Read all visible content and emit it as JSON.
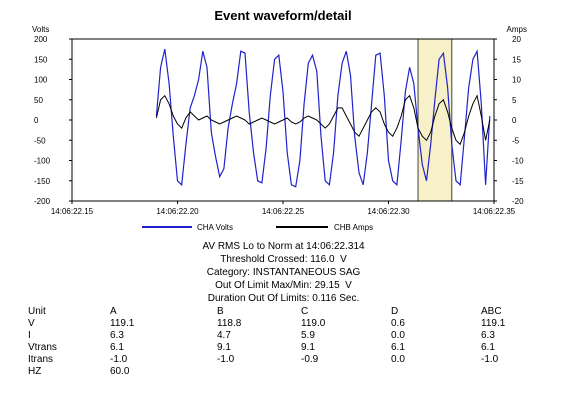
{
  "chart_data": {
    "type": "line",
    "title": "Event waveform/detail",
    "left_axis_label": "Volts",
    "right_axis_label": "Amps",
    "y_left_ticks": [
      "200",
      "150",
      "100",
      "50",
      "0",
      "-50",
      "-100",
      "-150",
      "-200"
    ],
    "y_right_ticks": [
      "20",
      "15",
      "10",
      "5",
      "0",
      "-5",
      "-10",
      "-15",
      "-20"
    ],
    "y_left_lim": [
      -200,
      200
    ],
    "y_right_lim": [
      -20,
      20
    ],
    "x_ticks": [
      "14:06:22.15",
      "14:06:22.20",
      "14:06:22.25",
      "14:06:22.30",
      "14:06:22.35"
    ],
    "x_lim_seconds": [
      22.15,
      22.35
    ],
    "highlight_range_seconds": [
      22.314,
      22.33
    ],
    "highlight_color": "#f7f0c8",
    "series": [
      {
        "name": "CHA Volts",
        "color": "#1f23cc",
        "axis": "left",
        "x": [
          22.19,
          22.192,
          22.194,
          22.196,
          22.198,
          22.2,
          22.202,
          22.204,
          22.206,
          22.208,
          22.21,
          22.212,
          22.214,
          22.216,
          22.218,
          22.22,
          22.222,
          22.224,
          22.226,
          22.228,
          22.23,
          22.232,
          22.234,
          22.236,
          22.238,
          22.24,
          22.242,
          22.244,
          22.246,
          22.248,
          22.25,
          22.252,
          22.254,
          22.256,
          22.258,
          22.26,
          22.262,
          22.264,
          22.266,
          22.268,
          22.27,
          22.272,
          22.274,
          22.276,
          22.278,
          22.28,
          22.282,
          22.284,
          22.286,
          22.288,
          22.29,
          22.292,
          22.294,
          22.296,
          22.298,
          22.3,
          22.302,
          22.304,
          22.306,
          22.308,
          22.31,
          22.312,
          22.314,
          22.316,
          22.318,
          22.32,
          22.322,
          22.324,
          22.326,
          22.328,
          22.33,
          22.332,
          22.334,
          22.336,
          22.338,
          22.34,
          22.342,
          22.344,
          22.346,
          22.348
        ],
        "values": [
          10,
          130,
          175,
          90,
          -40,
          -150,
          -160,
          -60,
          30,
          60,
          100,
          170,
          130,
          -30,
          -90,
          -140,
          -120,
          -20,
          40,
          90,
          170,
          165,
          20,
          -80,
          -150,
          -155,
          -70,
          60,
          150,
          160,
          70,
          -80,
          -160,
          -165,
          -100,
          40,
          140,
          160,
          120,
          -40,
          -150,
          -160,
          -80,
          60,
          140,
          170,
          110,
          -40,
          -130,
          -160,
          -80,
          40,
          160,
          165,
          60,
          -100,
          -150,
          -160,
          -50,
          70,
          130,
          90,
          -20,
          -110,
          -150,
          -60,
          50,
          150,
          165,
          80,
          -60,
          -150,
          -160,
          -40,
          80,
          150,
          170,
          40,
          -160,
          10
        ]
      },
      {
        "name": "CHB Amps",
        "color": "#000000",
        "axis": "right",
        "x": [
          22.19,
          22.192,
          22.194,
          22.196,
          22.198,
          22.2,
          22.202,
          22.204,
          22.206,
          22.208,
          22.21,
          22.212,
          22.214,
          22.216,
          22.218,
          22.22,
          22.222,
          22.224,
          22.226,
          22.228,
          22.23,
          22.232,
          22.234,
          22.236,
          22.238,
          22.24,
          22.242,
          22.244,
          22.246,
          22.248,
          22.25,
          22.252,
          22.254,
          22.256,
          22.258,
          22.26,
          22.262,
          22.264,
          22.266,
          22.268,
          22.27,
          22.272,
          22.274,
          22.276,
          22.278,
          22.28,
          22.282,
          22.284,
          22.286,
          22.288,
          22.29,
          22.292,
          22.294,
          22.296,
          22.298,
          22.3,
          22.302,
          22.304,
          22.306,
          22.308,
          22.31,
          22.312,
          22.314,
          22.316,
          22.318,
          22.32,
          22.322,
          22.324,
          22.326,
          22.328,
          22.33,
          22.332,
          22.334,
          22.336,
          22.338,
          22.34,
          22.342,
          22.344,
          22.346,
          22.348
        ],
        "values": [
          0.5,
          5,
          6,
          4,
          1,
          -1,
          -2,
          0.5,
          2,
          1,
          0,
          0.5,
          1,
          0,
          -0.5,
          -1,
          -0.5,
          0,
          0.5,
          1,
          0.5,
          0,
          -1,
          -0.5,
          0,
          0.5,
          0,
          -0.5,
          -1,
          -0.5,
          0,
          0.5,
          -0.5,
          -1,
          -0.5,
          0.5,
          1,
          0.5,
          0,
          -1,
          -2,
          -1,
          1,
          3,
          3,
          1,
          -1,
          -3,
          -4,
          -2,
          0,
          2,
          3,
          2,
          -1,
          -3,
          -4,
          -2,
          1,
          5,
          6,
          3,
          -2,
          -4,
          -5,
          -3,
          1,
          4,
          5,
          2,
          -2,
          -5,
          -6,
          -3,
          1,
          4,
          6,
          1,
          -5,
          0
        ]
      }
    ]
  },
  "summary": {
    "line1": "AV RMS Lo to Norm at 14:06:22.314",
    "line2": "Threshold Crossed: 116.0  V",
    "line3": "Category: INSTANTANEOUS SAG",
    "line4": "Out Of Limit Max/Min: 29.15  V",
    "line5": "Duration Out Of Limits: 0.116 Sec."
  },
  "table": {
    "headers": [
      "Unit",
      "A",
      "B",
      "C",
      "D",
      "ABC"
    ],
    "rows": [
      [
        "V",
        "119.1",
        "118.8",
        "119.0",
        "0.6",
        "119.1"
      ],
      [
        "I",
        "6.3",
        "4.7",
        "5.9",
        "0.0",
        "6.3"
      ],
      [
        "Vtrans",
        "6.1",
        "9.1",
        "9.1",
        "6.1",
        "6.1"
      ],
      [
        "Itrans",
        "-1.0",
        "-1.0",
        "-0.9",
        "0.0",
        "-1.0"
      ],
      [
        "HZ",
        "60.0",
        "",
        "",
        "",
        ""
      ]
    ]
  }
}
